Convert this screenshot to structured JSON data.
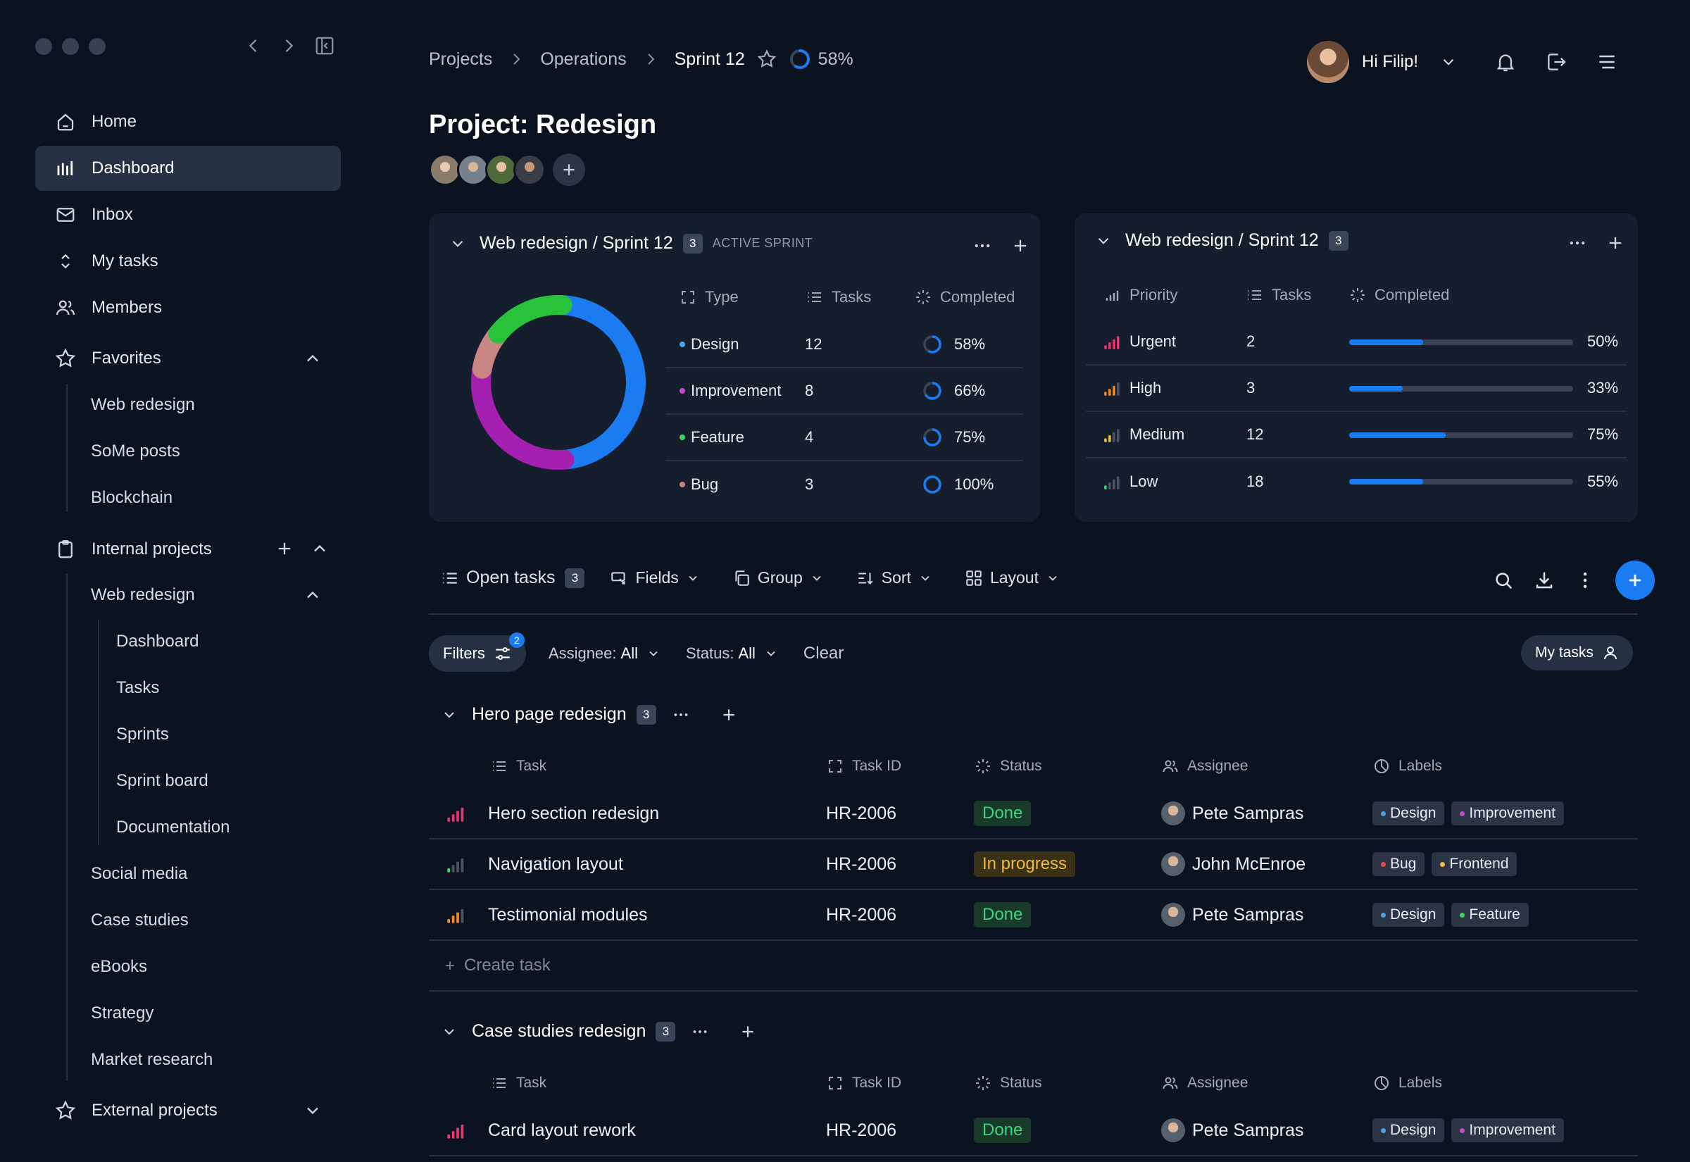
{
  "sidebar": {
    "nav": [
      {
        "label": "Home",
        "icon": "home-icon"
      },
      {
        "label": "Dashboard",
        "icon": "dashboard-icon",
        "active": true
      },
      {
        "label": "Inbox",
        "icon": "mail-icon"
      },
      {
        "label": "My tasks",
        "icon": "sort-icon"
      },
      {
        "label": "Members",
        "icon": "users-icon"
      }
    ],
    "favorites": {
      "label": "Favorites",
      "items": [
        "Web redesign",
        "SoMe posts",
        "Blockchain"
      ]
    },
    "internal": {
      "label": "Internal projects",
      "web_redesign": {
        "label": "Web redesign",
        "items": [
          "Dashboard",
          "Tasks",
          "Sprints",
          "Sprint board",
          "Documentation"
        ]
      },
      "items": [
        "Social media",
        "Case studies",
        "eBooks",
        "Strategy",
        "Market research"
      ]
    },
    "external": {
      "label": "External projects"
    }
  },
  "header": {
    "breadcrumb": [
      "Projects",
      "Operations",
      "Sprint 12"
    ],
    "progress_pct": 58,
    "progress_label": "58%",
    "greeting": "Hi Filip!"
  },
  "page": {
    "title": "Project: Redesign"
  },
  "card_left": {
    "title": "Web redesign / Sprint 12",
    "count": "3",
    "tag": "ACTIVE SPRINT",
    "columns": [
      "Type",
      "Tasks",
      "Completed"
    ],
    "rows": [
      {
        "type": "Design",
        "color": "#4aa3e8",
        "tasks": "12",
        "completed": "58%",
        "pct": 58
      },
      {
        "type": "Improvement",
        "color": "#c34ad1",
        "tasks": "8",
        "completed": "66%",
        "pct": 66
      },
      {
        "type": "Feature",
        "color": "#3fd45a",
        "tasks": "4",
        "completed": "75%",
        "pct": 75
      },
      {
        "type": "Bug",
        "color": "#c98683",
        "tasks": "3",
        "completed": "100%",
        "pct": 100
      }
    ],
    "donut": [
      {
        "name": "Design",
        "value": 48,
        "color": "#1a7cf0"
      },
      {
        "name": "Improvement",
        "value": 29,
        "color": "#a51fb0"
      },
      {
        "name": "Bug",
        "value": 8,
        "color": "#c98683"
      },
      {
        "name": "Feature",
        "value": 15,
        "color": "#27c23a"
      }
    ]
  },
  "card_right": {
    "title": "Web redesign / Sprint 12",
    "count": "3",
    "columns": [
      "Priority",
      "Tasks",
      "Completed"
    ],
    "rows": [
      {
        "priority": "Urgent",
        "tasks": "2",
        "completed": "50%",
        "pct": 0.33,
        "color": "#e8366f",
        "level": 4
      },
      {
        "priority": "High",
        "tasks": "3",
        "completed": "33%",
        "pct": 0.24,
        "color": "#f08a2e",
        "level": 3
      },
      {
        "priority": "Medium",
        "tasks": "12",
        "completed": "75%",
        "pct": 0.43,
        "color": "#f2c23b",
        "level": 2
      },
      {
        "priority": "Low",
        "tasks": "18",
        "completed": "55%",
        "pct": 0.33,
        "color": "#3fd47e",
        "level": 1
      }
    ]
  },
  "toolbar": {
    "open_tasks": "Open tasks",
    "open_count": "3",
    "fields": "Fields",
    "group": "Group",
    "sort": "Sort",
    "layout": "Layout"
  },
  "filters": {
    "label": "Filters",
    "count": "2",
    "assignee_label": "Assignee:",
    "assignee_value": "All",
    "status_label": "Status:",
    "status_value": "All",
    "clear": "Clear",
    "my_tasks": "My tasks"
  },
  "columns": {
    "task": "Task",
    "task_id": "Task ID",
    "status": "Status",
    "assignee": "Assignee",
    "labels": "Labels"
  },
  "groups": [
    {
      "title": "Hero page redesign",
      "count": "3",
      "tasks": [
        {
          "name": "Hero section redesign",
          "id": "HR-2006",
          "status": "Done",
          "status_kind": "done",
          "assignee": "Pete Sampras",
          "priority_color": "#e8366f",
          "level": 4,
          "labels": [
            {
              "name": "Design",
              "color": "#4aa3e8"
            },
            {
              "name": "Improvement",
              "color": "#c34ad1"
            }
          ]
        },
        {
          "name": "Navigation layout",
          "id": "HR-2006",
          "status": "In progress",
          "status_kind": "prog",
          "assignee": "John McEnroe",
          "priority_color": "#3fd47e",
          "level": 1,
          "labels": [
            {
              "name": "Bug",
              "color": "#e84848"
            },
            {
              "name": "Frontend",
              "color": "#f2c23b"
            }
          ]
        },
        {
          "name": "Testimonial modules",
          "id": "HR-2006",
          "status": "Done",
          "status_kind": "done",
          "assignee": "Pete Sampras",
          "priority_color": "#f08a2e",
          "level": 3,
          "labels": [
            {
              "name": "Design",
              "color": "#4aa3e8"
            },
            {
              "name": "Feature",
              "color": "#3fd45a"
            }
          ]
        }
      ],
      "create": "Create task"
    },
    {
      "title": "Case studies redesign",
      "count": "3",
      "tasks": [
        {
          "name": "Card layout rework",
          "id": "HR-2006",
          "status": "Done",
          "status_kind": "done",
          "assignee": "Pete Sampras",
          "priority_color": "#e8366f",
          "level": 4,
          "labels": [
            {
              "name": "Design",
              "color": "#4aa3e8"
            },
            {
              "name": "Improvement",
              "color": "#c34ad1"
            }
          ]
        }
      ]
    }
  ]
}
